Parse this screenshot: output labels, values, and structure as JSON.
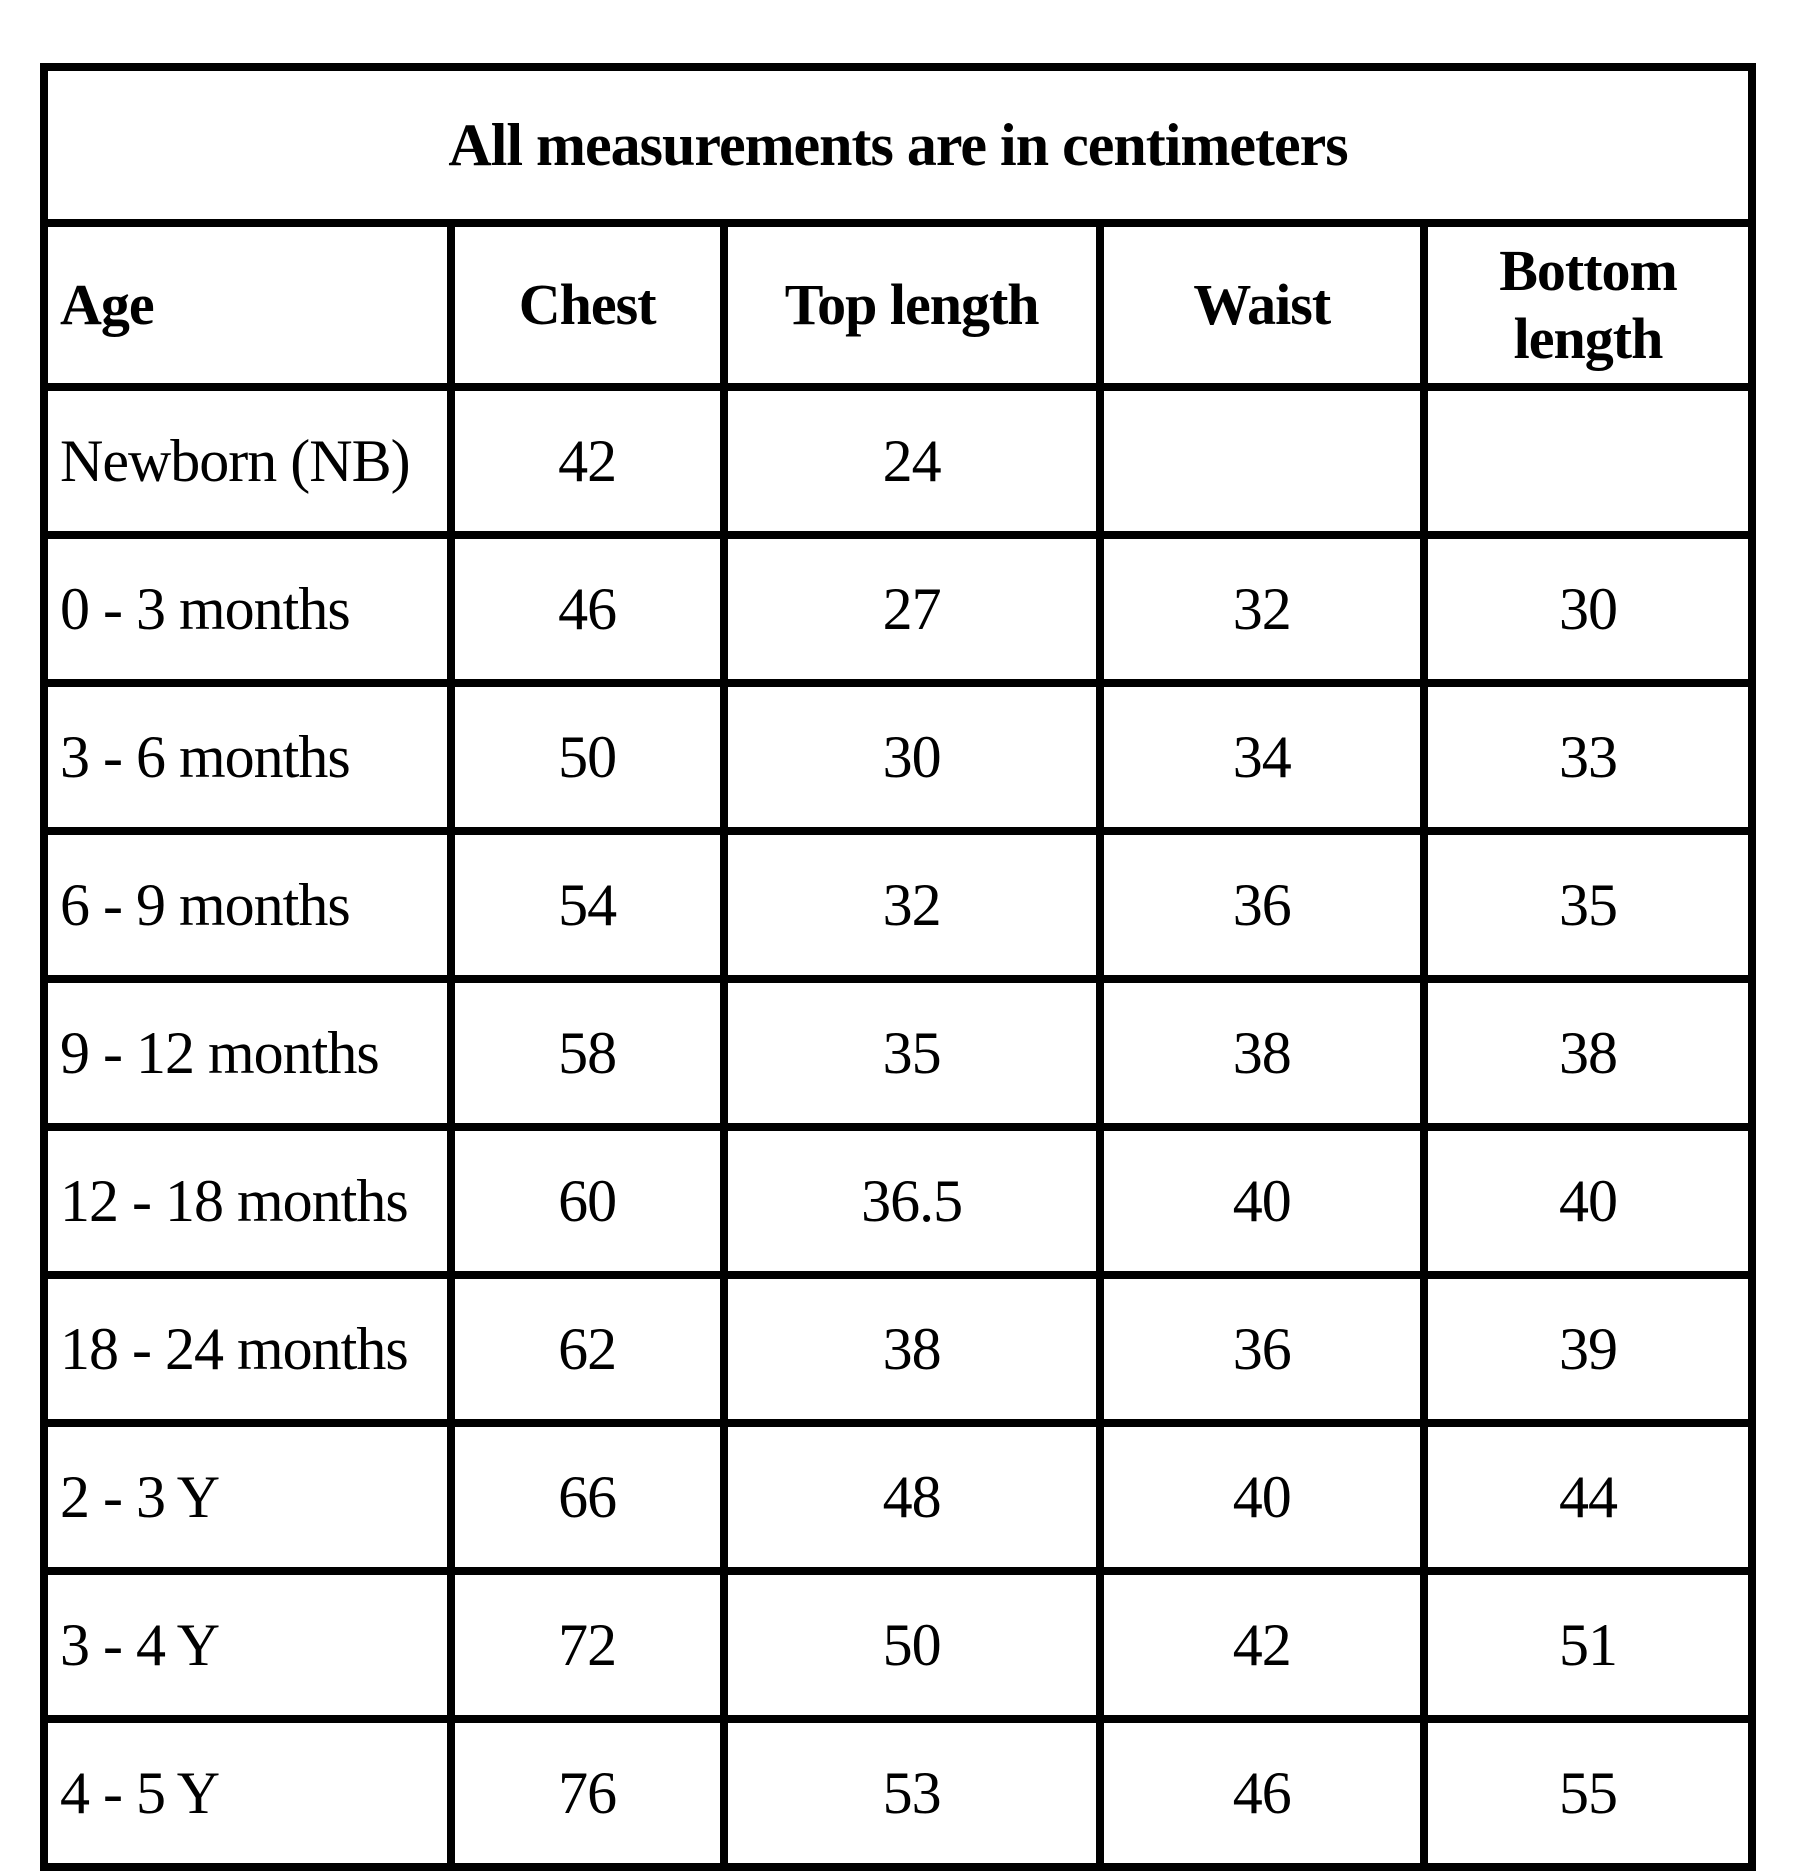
{
  "chart_data": {
    "type": "table",
    "title": "All measurements are in centimeters",
    "columns": [
      "Age",
      "Chest",
      "Top length",
      "Waist",
      "Bottom length"
    ],
    "rows": [
      [
        "Newborn (NB)",
        "42",
        "24",
        "",
        ""
      ],
      [
        "0 - 3 months",
        "46",
        "27",
        "32",
        "30"
      ],
      [
        "3 - 6 months",
        "50",
        "30",
        "34",
        "33"
      ],
      [
        "6 - 9 months",
        "54",
        "32",
        "36",
        "35"
      ],
      [
        "9 - 12 months",
        "58",
        "35",
        "38",
        "38"
      ],
      [
        "12 - 18 months",
        "60",
        "36.5",
        "40",
        "40"
      ],
      [
        "18 - 24 months",
        "62",
        "38",
        "36",
        "39"
      ],
      [
        "2 - 3 Y",
        "66",
        "48",
        "40",
        "44"
      ],
      [
        "3 - 4 Y",
        "72",
        "50",
        "42",
        "51"
      ],
      [
        "4 - 5 Y",
        "76",
        "53",
        "46",
        "55"
      ]
    ],
    "units": "centimeters"
  },
  "colors": {
    "border": "#000000",
    "text": "#000000",
    "background": "#ffffff"
  }
}
